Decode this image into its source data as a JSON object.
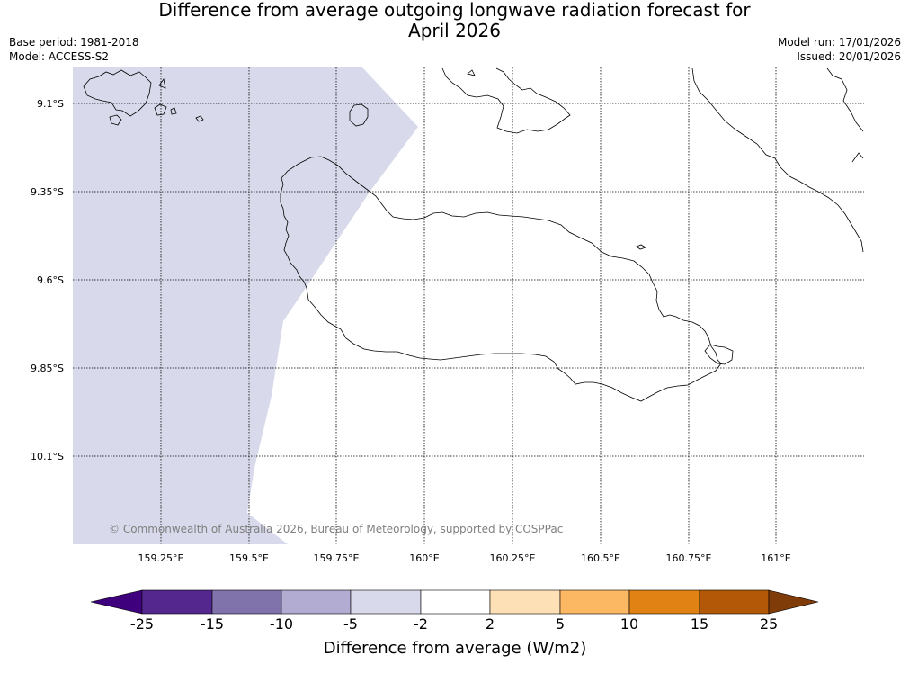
{
  "title_line1": "Difference from average outgoing longwave radiation forecast for",
  "title_line2": "April 2026",
  "base_period": "Base period: 1981-2018",
  "model": "Model: ACCESS-S2",
  "model_run": "Model run: 17/01/2026",
  "issued": "Issued: 20/01/2026",
  "copyright": "© Commonwealth of Australia 2026, Bureau of Meteorology, supported by COSPPac",
  "latitude_labels": [
    "9.1°S",
    "9.35°S",
    "9.6°S",
    "9.85°S",
    "10.1°S"
  ],
  "longitude_labels": [
    "159.25°E",
    "159.5°E",
    "159.75°E",
    "160°E",
    "160.25°E",
    "160.5°E",
    "160.75°E",
    "161°E"
  ],
  "colorbar": {
    "title": "Difference from average (W/m2)",
    "ticks": [
      "-25",
      "-15",
      "-10",
      "-5",
      "-2",
      "2",
      "5",
      "10",
      "15",
      "25"
    ],
    "colors": [
      "#3f007d",
      "#54278f",
      "#8073ac",
      "#b2abd2",
      "#d8daeb",
      "#ffffff",
      "#fee0b6",
      "#fdb863",
      "#e08214",
      "#b35806",
      "#7f3b08"
    ]
  },
  "shaded_region_category": "-5 to -2",
  "shaded_region_color": "#d8daeb"
}
